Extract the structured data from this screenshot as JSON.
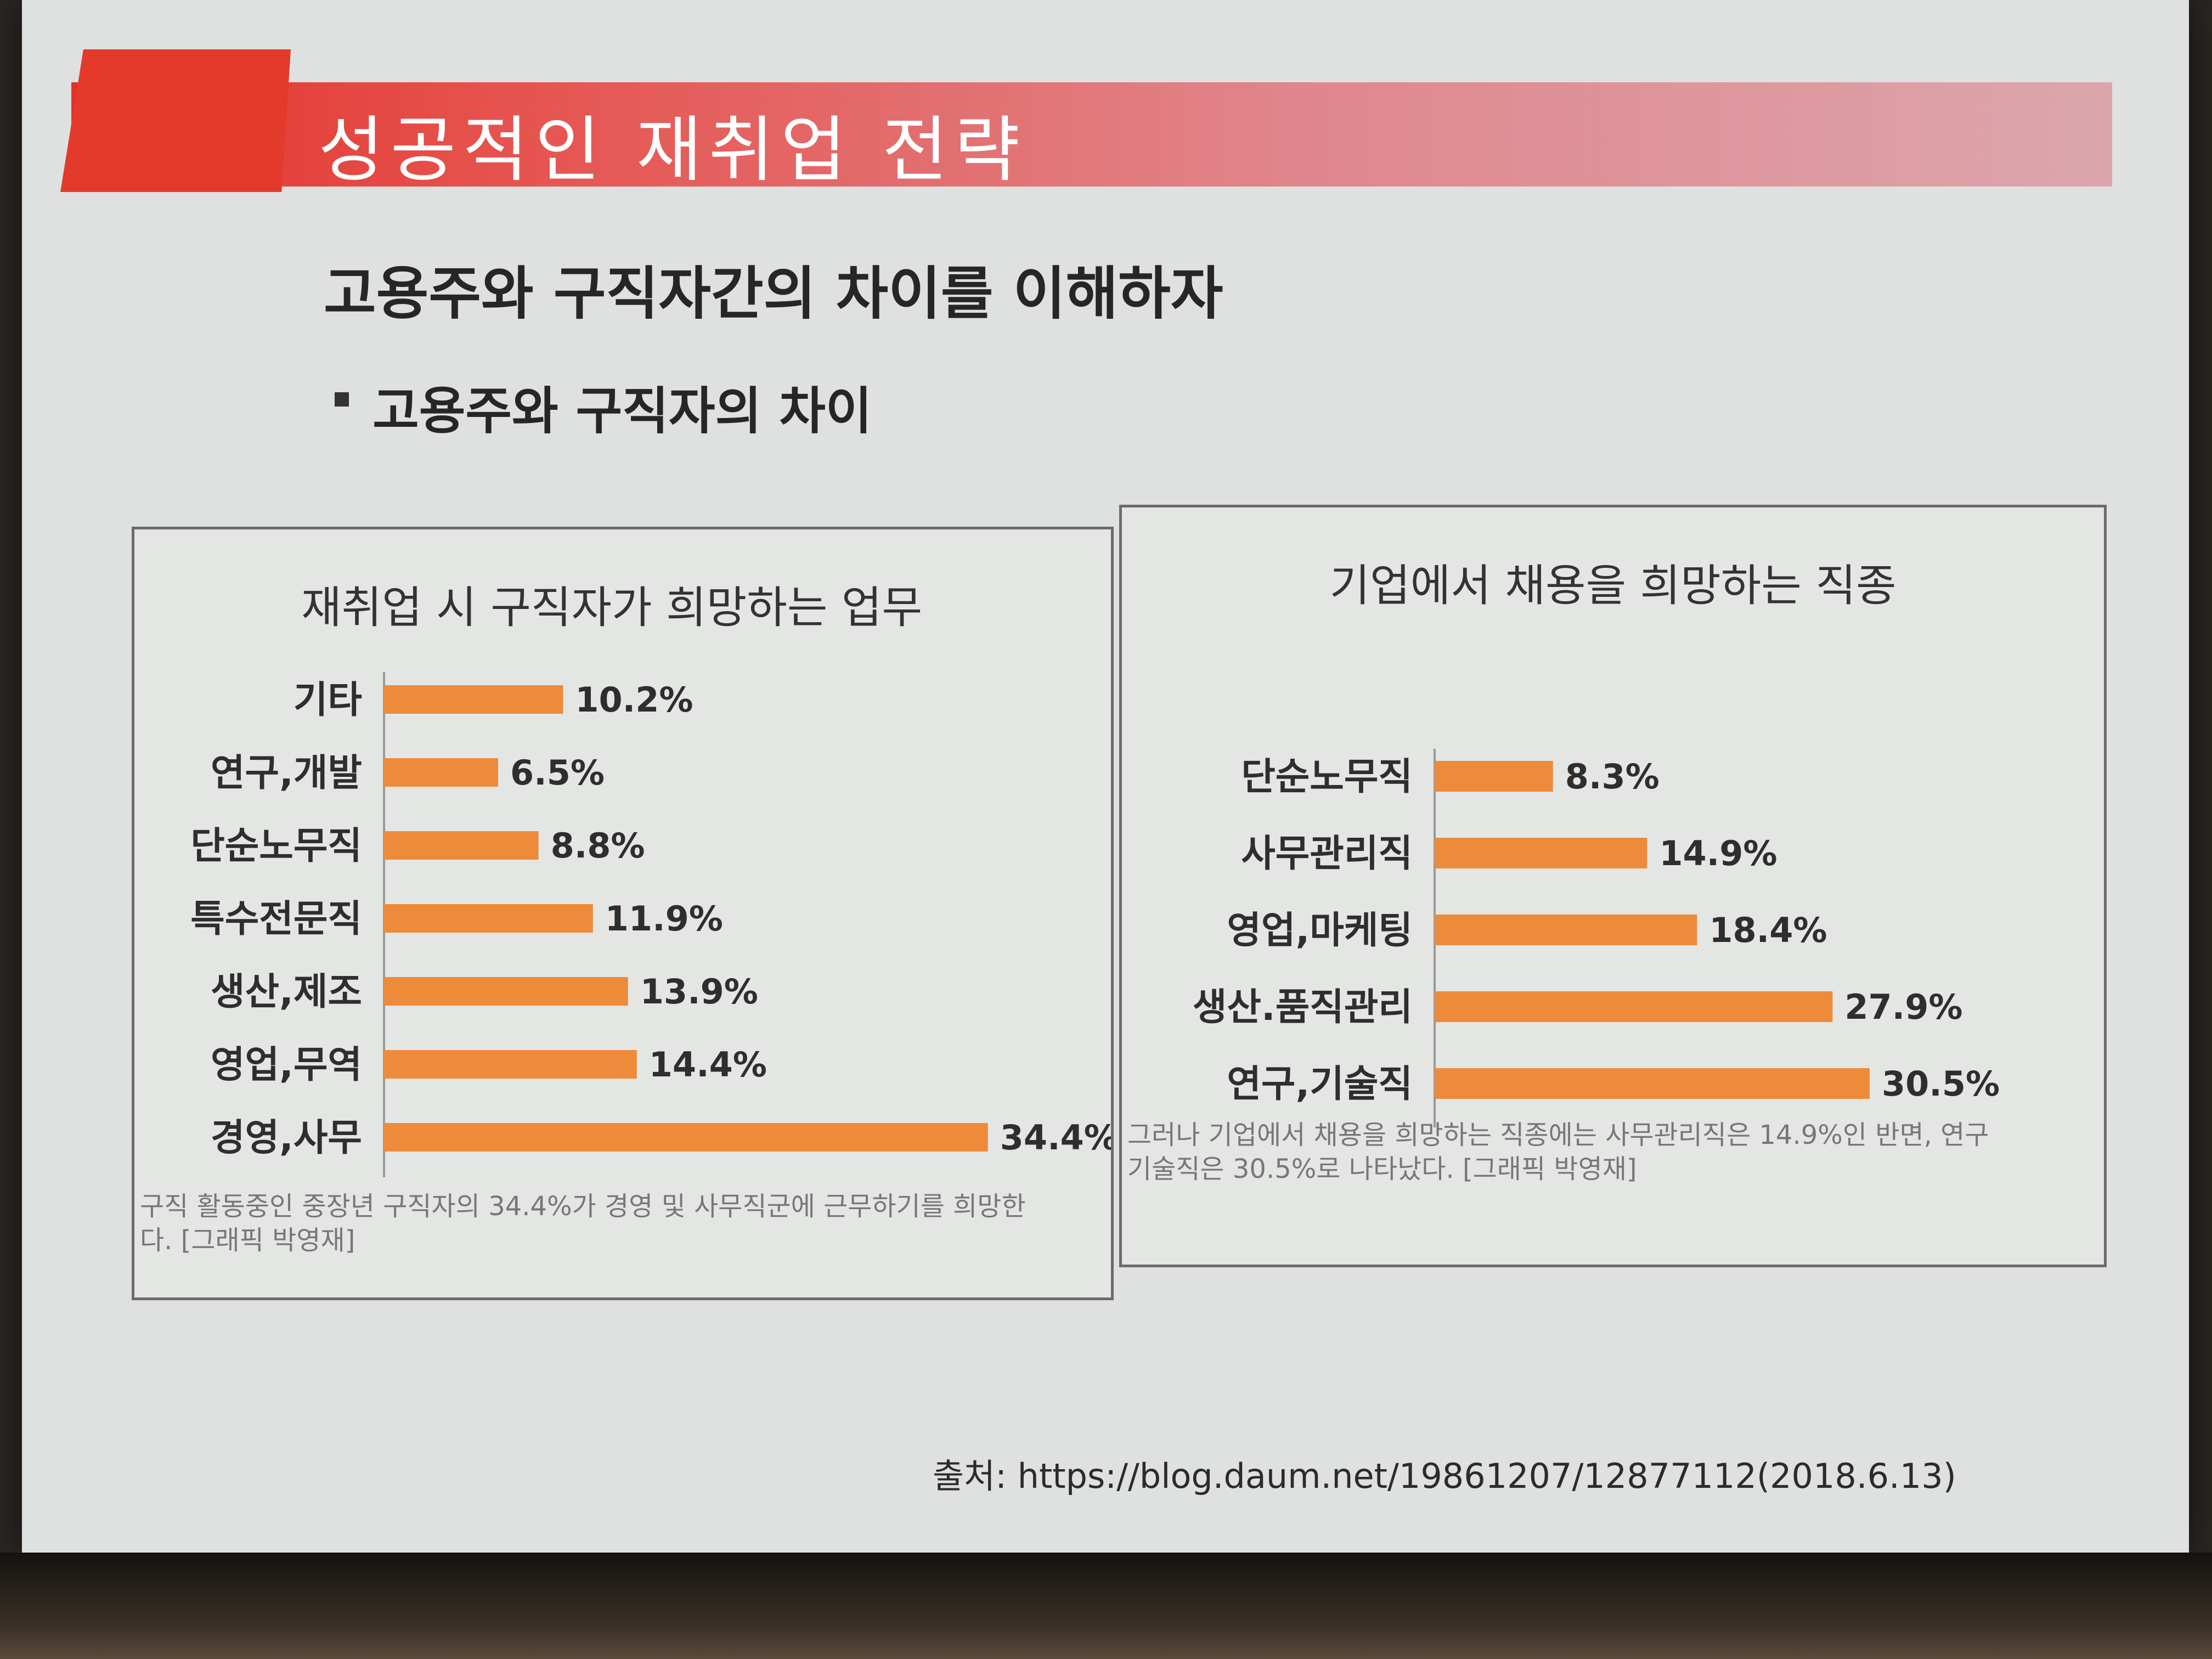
{
  "slide": {
    "title": "성공적인 재취업 전략",
    "heading": "고용주와 구직자간의 차이를 이해하자",
    "bullet": "고용주와 구직자의 차이",
    "source": "출처: https://blog.daum.net/19861207/12877112(2018.6.13)"
  },
  "colors": {
    "bar": "#ee8b3a",
    "banner": "#e2322b"
  },
  "chart_data": [
    {
      "type": "bar",
      "orientation": "horizontal",
      "title": "재취업 시 구직자가 희망하는 업무",
      "categories": [
        "기타",
        "연구,개발",
        "단순노무직",
        "특수전문직",
        "생산,제조",
        "영업,무역",
        "경영,사무"
      ],
      "values": [
        10.2,
        6.5,
        8.8,
        11.9,
        13.9,
        14.4,
        34.4
      ],
      "value_labels": [
        "10.2%",
        "6.5%",
        "8.8%",
        "11.9%",
        "13.9%",
        "14.4%",
        "34.4%"
      ],
      "caption_lines": [
        "구직 활동중인 중장년 구직자의 34.4%가 경영 및 사무직군에 근무하기를 희망한",
        "다. [그래픽 박영재]"
      ]
    },
    {
      "type": "bar",
      "orientation": "horizontal",
      "title": "기업에서 채용을 희망하는 직종",
      "categories": [
        "단순노무직",
        "사무관리직",
        "영업,마케팅",
        "생산.품직관리",
        "연구,기술직"
      ],
      "values": [
        8.3,
        14.9,
        18.4,
        27.9,
        30.5
      ],
      "value_labels": [
        "8.3%",
        "14.9%",
        "18.4%",
        "27.9%",
        "30.5%"
      ],
      "caption_lines": [
        "그러나 기업에서 채용을 희망하는 직종에는 사무관리직은 14.9%인 반면, 연구",
        "기술직은 30.5%로 나타났다. [그래픽 박영재]"
      ]
    }
  ]
}
